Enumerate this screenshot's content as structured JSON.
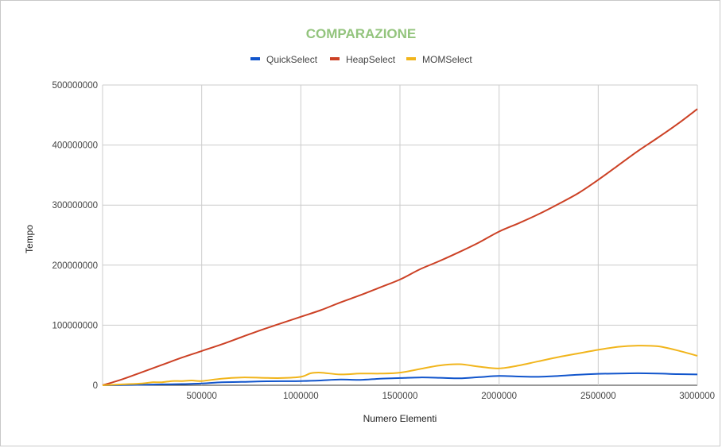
{
  "chart_data": {
    "type": "line",
    "title": "COMPARAZIONE",
    "title_color": "#93c47d",
    "xlabel": "Numero Elementi",
    "ylabel": "Tempo",
    "xlim": [
      0,
      3000000
    ],
    "ylim": [
      0,
      500000000
    ],
    "x_ticks": [
      500000,
      1000000,
      1500000,
      2000000,
      2500000,
      3000000
    ],
    "x_tick_labels": [
      "500000",
      "1000000",
      "1500000",
      "2000000",
      "2500000",
      "3000000"
    ],
    "y_ticks": [
      0,
      100000000,
      200000000,
      300000000,
      400000000,
      500000000
    ],
    "y_tick_labels": [
      "0",
      "100000000",
      "200000000",
      "300000000",
      "400000000",
      "500000000"
    ],
    "grid": true,
    "legend_position": "top",
    "series": [
      {
        "name": "QuickSelect",
        "color": "#1155cc",
        "x": [
          0,
          100000,
          200000,
          300000,
          400000,
          500000,
          600000,
          700000,
          800000,
          900000,
          1000000,
          1100000,
          1200000,
          1300000,
          1400000,
          1500000,
          1600000,
          1700000,
          1800000,
          1900000,
          2000000,
          2100000,
          2200000,
          2300000,
          2400000,
          2500000,
          2600000,
          2700000,
          2800000,
          2900000,
          3000000
        ],
        "values": [
          0,
          300000,
          800000,
          1500000,
          2000000,
          3000000,
          5000000,
          5500000,
          6500000,
          6800000,
          7000000,
          8000000,
          9500000,
          9000000,
          11000000,
          12000000,
          13000000,
          12500000,
          11500000,
          13500000,
          15500000,
          14500000,
          14000000,
          15500000,
          17500000,
          19000000,
          19500000,
          20000000,
          19500000,
          18500000,
          18000000
        ]
      },
      {
        "name": "HeapSelect",
        "color": "#cc4125",
        "x": [
          0,
          100000,
          200000,
          300000,
          400000,
          500000,
          600000,
          700000,
          800000,
          900000,
          1000000,
          1100000,
          1200000,
          1300000,
          1400000,
          1500000,
          1600000,
          1700000,
          1800000,
          1900000,
          2000000,
          2100000,
          2200000,
          2300000,
          2400000,
          2500000,
          2600000,
          2700000,
          2800000,
          2900000,
          3000000
        ],
        "values": [
          0,
          10000000,
          22000000,
          34000000,
          46000000,
          57000000,
          68000000,
          80000000,
          92000000,
          103000000,
          114000000,
          125000000,
          138000000,
          150000000,
          163000000,
          176000000,
          193000000,
          207000000,
          222000000,
          238000000,
          256000000,
          270000000,
          285000000,
          302000000,
          320000000,
          342000000,
          366000000,
          390000000,
          412000000,
          435000000,
          460000000
        ]
      },
      {
        "name": "MOMSelect",
        "color": "#f1b51c",
        "x": [
          0,
          100000,
          200000,
          250000,
          300000,
          350000,
          400000,
          450000,
          500000,
          600000,
          700000,
          800000,
          900000,
          1000000,
          1050000,
          1100000,
          1200000,
          1300000,
          1400000,
          1500000,
          1600000,
          1700000,
          1800000,
          1900000,
          2000000,
          2100000,
          2200000,
          2300000,
          2400000,
          2500000,
          2600000,
          2700000,
          2800000,
          2900000,
          3000000
        ],
        "values": [
          0,
          1500000,
          3000000,
          5000000,
          5000000,
          7000000,
          7000000,
          8000000,
          7000000,
          11000000,
          13000000,
          12500000,
          12000000,
          14000000,
          20000000,
          21000000,
          18000000,
          19500000,
          19500000,
          21000000,
          27000000,
          33000000,
          35000000,
          31000000,
          28000000,
          33000000,
          40000000,
          47000000,
          53000000,
          59000000,
          64000000,
          66000000,
          65000000,
          58000000,
          49000000
        ]
      }
    ]
  }
}
